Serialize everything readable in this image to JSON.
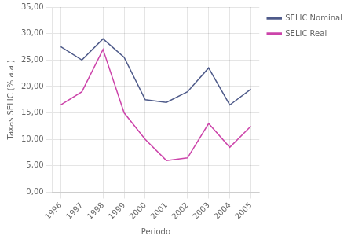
{
  "chart_data": {
    "type": "line",
    "x": [
      1996,
      1997,
      1998,
      1999,
      2000,
      2001,
      2002,
      2003,
      2004,
      2005
    ],
    "series": [
      {
        "name": "SELIC Nominal",
        "color": "#4f5b8a",
        "values": [
          27.5,
          25.0,
          29.0,
          25.5,
          17.5,
          17.0,
          19.0,
          23.5,
          16.5,
          19.5
        ]
      },
      {
        "name": "SELIC Real",
        "color": "#cc44aa",
        "values": [
          16.5,
          19.0,
          27.0,
          15.0,
          10.0,
          6.0,
          6.5,
          13.0,
          8.5,
          12.5
        ]
      }
    ],
    "x_label": "Periodo",
    "y_label": "Taxas SELIC (% a.a.)",
    "xlim": [
      1995.6,
      2005.4
    ],
    "xticks": [
      1996,
      1997,
      1998,
      1999,
      2000,
      2001,
      2002,
      2003,
      2004,
      2005
    ],
    "ylim": [
      0.0,
      35.0
    ],
    "yticks": [
      {
        "value": 0.0,
        "label": "0,00"
      },
      {
        "value": 5.0,
        "label": "5,00"
      },
      {
        "value": 10.0,
        "label": "10,00"
      },
      {
        "value": 15.0,
        "label": "15,00"
      },
      {
        "value": 20.0,
        "label": "20,00"
      },
      {
        "value": 25.0,
        "label": "25,00"
      },
      {
        "value": 30.0,
        "label": "30,00"
      },
      {
        "value": 35.0,
        "label": "35,00"
      }
    ],
    "grid": true,
    "legend": "right"
  }
}
